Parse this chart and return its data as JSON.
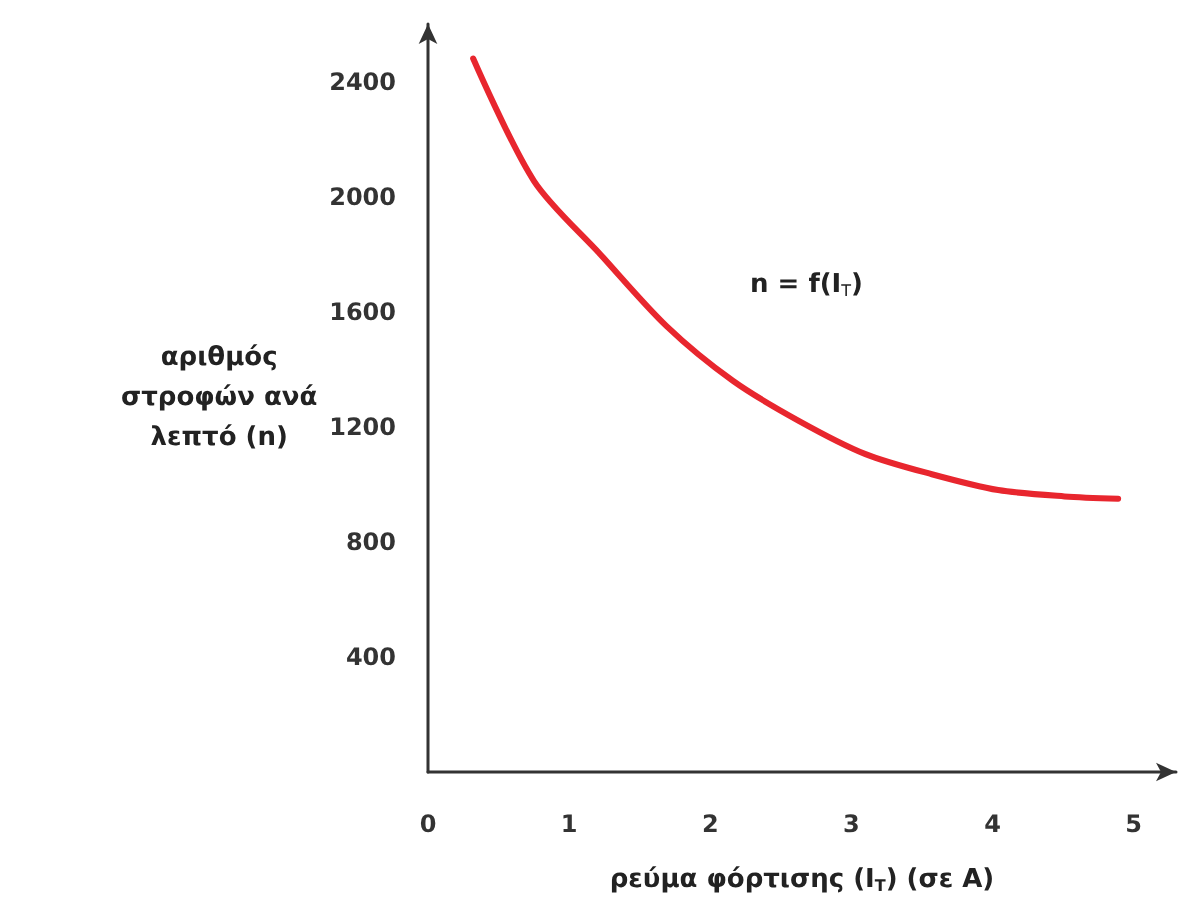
{
  "chart_data": {
    "type": "line",
    "xlabel": "ρεύμα φόρτισης (I$_{T}$) (σε A)",
    "ylabel": "αριθμός στροφών ανά λεπτό (n)",
    "annotations": [
      "n = f(I$_{T}$)"
    ],
    "series": [
      {
        "color": "#e8262e",
        "x": [
          0.32,
          0.75,
          1.22,
          1.69,
          2.16,
          2.63,
          3.1,
          3.57,
          4.04,
          4.51,
          4.89
        ],
        "values": [
          2480,
          2055,
          1800,
          1550,
          1360,
          1220,
          1105,
          1035,
          980,
          958,
          950
        ]
      }
    ],
    "xlim": [
      0,
      5.3
    ],
    "xticks": [
      0,
      1,
      2,
      3,
      4,
      5
    ],
    "ylim": [
      0,
      2600
    ],
    "yticks": [
      400,
      800,
      1200,
      1600,
      2000,
      2400
    ],
    "grid": false,
    "marker": "none",
    "line_style": "solid"
  }
}
